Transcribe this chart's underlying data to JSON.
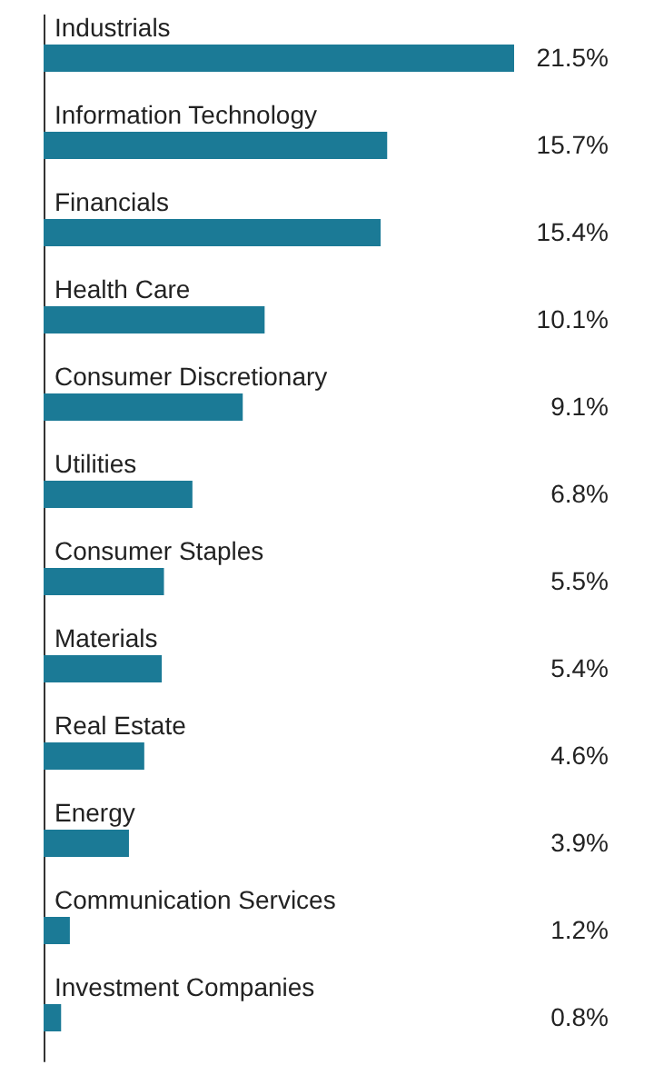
{
  "chart_data": {
    "type": "bar",
    "orientation": "horizontal",
    "color": "#1b7a96",
    "categories": [
      "Industrials",
      "Information Technology",
      "Financials",
      "Health Care",
      "Consumer Discretionary",
      "Utilities",
      "Consumer Staples",
      "Materials",
      "Real Estate",
      "Energy",
      "Communication Services",
      "Investment Companies"
    ],
    "values": [
      21.5,
      15.7,
      15.4,
      10.1,
      9.1,
      6.8,
      5.5,
      5.4,
      4.6,
      3.9,
      1.2,
      0.8
    ],
    "value_labels": [
      "21.5%",
      "15.7%",
      "15.4%",
      "10.1%",
      "9.1%",
      "6.8%",
      "5.5%",
      "5.4%",
      "4.6%",
      "3.9%",
      "1.2%",
      "0.8%"
    ]
  }
}
